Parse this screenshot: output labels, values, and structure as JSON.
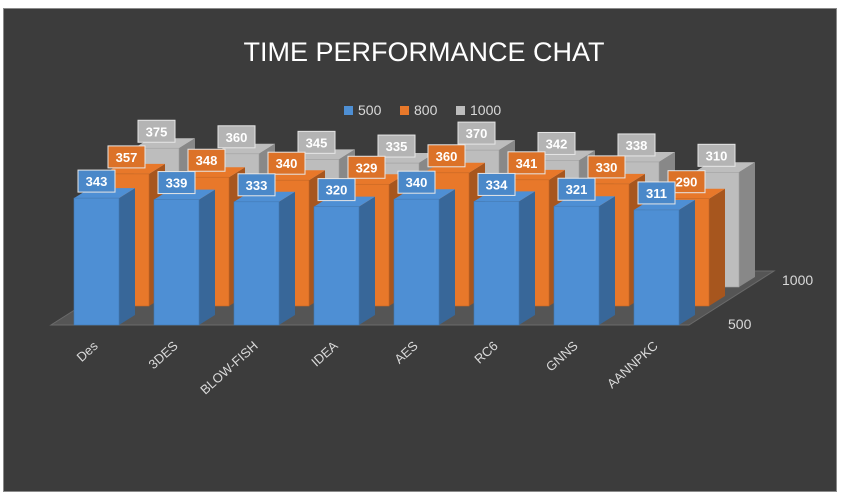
{
  "chart_data": {
    "type": "bar",
    "title": "TIME PERFORMANCE CHAT",
    "xlabel": "",
    "ylabel": "",
    "categories": [
      "Des",
      "3DES",
      "BLOW-FISH",
      "IDEA",
      "AES",
      "RC6",
      "GNNS",
      "AANNPKC"
    ],
    "series": [
      {
        "name": "500",
        "values": [
          343,
          339,
          333,
          320,
          340,
          334,
          321,
          311
        ]
      },
      {
        "name": "800",
        "values": [
          357,
          348,
          340,
          329,
          360,
          341,
          330,
          290
        ]
      },
      {
        "name": "1000",
        "values": [
          375,
          360,
          345,
          335,
          370,
          342,
          338,
          310
        ]
      }
    ],
    "depth_labels": [
      "1000",
      "500"
    ],
    "legend_position": "top",
    "grid": false,
    "colors": {
      "500": "#4e8fd4",
      "800": "#e8782a",
      "1000": "#bdbdbd"
    }
  }
}
